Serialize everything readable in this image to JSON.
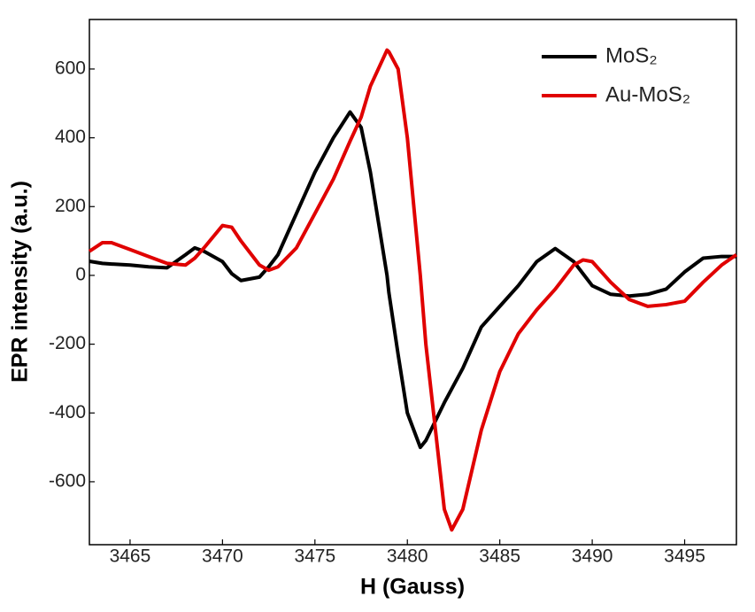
{
  "chart_data": {
    "type": "line",
    "x_label": "H (Gauss)",
    "y_label": "EPR intensity (a.u.)",
    "x": [
      3462.8,
      3463.5,
      3464,
      3465,
      3466,
      3467,
      3468,
      3468.5,
      3469,
      3470,
      3470.5,
      3471,
      3472,
      3472.5,
      3473,
      3474,
      3475,
      3476,
      3476.9,
      3477.5,
      3478,
      3478.9,
      3479,
      3479.5,
      3480,
      3480.7,
      3481,
      3482,
      3482.4,
      3483,
      3484,
      3485,
      3486,
      3487,
      3488,
      3489,
      3489.5,
      3490,
      3491,
      3492,
      3493,
      3494,
      3495,
      3496,
      3497,
      3497.8
    ],
    "series": [
      {
        "name": "MoS₂",
        "color": "#000000",
        "values": [
          41,
          35,
          33,
          30,
          25,
          22,
          60,
          80,
          70,
          40,
          5,
          -15,
          -5,
          25,
          60,
          180,
          300,
          400,
          475,
          430,
          300,
          0,
          -50,
          -230,
          -400,
          -500,
          -480,
          -370,
          -330,
          -270,
          -150,
          -90,
          -30,
          40,
          78,
          40,
          5,
          -30,
          -55,
          -60,
          -55,
          -40,
          10,
          50,
          55,
          55
        ]
      },
      {
        "name": "Au-MoS₂",
        "color": "#e00000",
        "values": [
          70,
          95,
          95,
          75,
          55,
          35,
          30,
          50,
          80,
          145,
          140,
          100,
          30,
          15,
          25,
          80,
          180,
          280,
          390,
          460,
          550,
          655,
          650,
          600,
          400,
          0,
          -200,
          -680,
          -740,
          -680,
          -450,
          -280,
          -170,
          -100,
          -40,
          30,
          45,
          40,
          -20,
          -70,
          -90,
          -85,
          -75,
          -20,
          30,
          60
        ]
      }
    ],
    "xlim": [
      3462.8,
      3497.8
    ],
    "xticks": [
      3465,
      3470,
      3475,
      3480,
      3485,
      3490,
      3495
    ],
    "ylim": [
      -783,
      744
    ],
    "yticks": [
      -600,
      -400,
      -200,
      0,
      200,
      400,
      600
    ],
    "legend": "upper right"
  }
}
